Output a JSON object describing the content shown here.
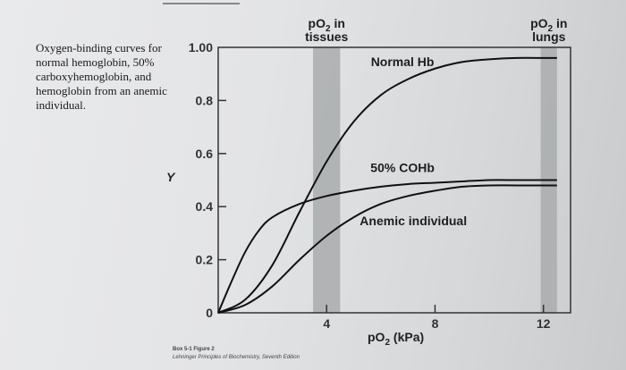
{
  "caption": "Oxygen-binding curves for normal hemoglobin, 50% carboxyhemoglobin, and hemoglobin from an anemic individual.",
  "footer": {
    "line1": "Box 5-1 Figure 2",
    "line2": "Lehninger Principles of Biochemistry, Seventh Edition"
  },
  "chart_data": {
    "type": "line",
    "ylabel": "Y",
    "xlabel_main": "pO",
    "xlabel_sub": "2",
    "xlabel_unit": " (kPa)",
    "xlim": [
      0,
      13
    ],
    "ylim": [
      0,
      1.0
    ],
    "x_ticks": [
      {
        "value": 4,
        "label": "4"
      },
      {
        "value": 8,
        "label": "8"
      },
      {
        "value": 12,
        "label": "12"
      }
    ],
    "y_ticks": [
      {
        "value": 0,
        "label": "0"
      },
      {
        "value": 0.2,
        "label": "0.2"
      },
      {
        "value": 0.4,
        "label": "0.4"
      },
      {
        "value": 0.6,
        "label": "0.6"
      },
      {
        "value": 0.8,
        "label": "0.8"
      },
      {
        "value": 1.0,
        "label": "1.00"
      }
    ],
    "bands": [
      {
        "from": 3.5,
        "to": 4.5,
        "label_main": "pO",
        "label_sub": "2",
        "label_rest": " in",
        "label_line2": "tissues",
        "color": "#a9abad"
      },
      {
        "from": 11.9,
        "to": 12.5,
        "label_main": "pO",
        "label_sub": "2",
        "label_rest": " in",
        "label_line2": "lungs",
        "color": "#a9abad"
      }
    ],
    "series": [
      {
        "name": "Normal Hb",
        "x": [
          0,
          1,
          2,
          3,
          4,
          5,
          6,
          7,
          8,
          9,
          10,
          11,
          12,
          12.5
        ],
        "y": [
          0,
          0.05,
          0.18,
          0.38,
          0.57,
          0.72,
          0.82,
          0.88,
          0.92,
          0.945,
          0.955,
          0.96,
          0.96,
          0.96
        ]
      },
      {
        "name": "50% COHb",
        "x": [
          0,
          0.5,
          1,
          1.5,
          2,
          3,
          4,
          5,
          6,
          7,
          8,
          9,
          10,
          11,
          12,
          12.5
        ],
        "y": [
          0,
          0.12,
          0.23,
          0.31,
          0.36,
          0.41,
          0.44,
          0.46,
          0.475,
          0.485,
          0.49,
          0.495,
          0.5,
          0.5,
          0.5,
          0.5
        ]
      },
      {
        "name": "Anemic individual",
        "x": [
          0,
          1,
          2,
          3,
          4,
          5,
          6,
          7,
          8,
          9,
          10,
          11,
          12,
          12.5
        ],
        "y": [
          0,
          0.03,
          0.1,
          0.2,
          0.29,
          0.36,
          0.41,
          0.44,
          0.46,
          0.475,
          0.48,
          0.48,
          0.48,
          0.48
        ]
      }
    ],
    "curve_labels": [
      {
        "text": "Normal Hb",
        "x": 6.8,
        "y": 0.93
      },
      {
        "text": "50% COHb",
        "x": 6.8,
        "y": 0.53
      },
      {
        "text": "Anemic individual",
        "x": 7.2,
        "y": 0.33
      }
    ],
    "grid": false,
    "line_color": "#111111"
  }
}
